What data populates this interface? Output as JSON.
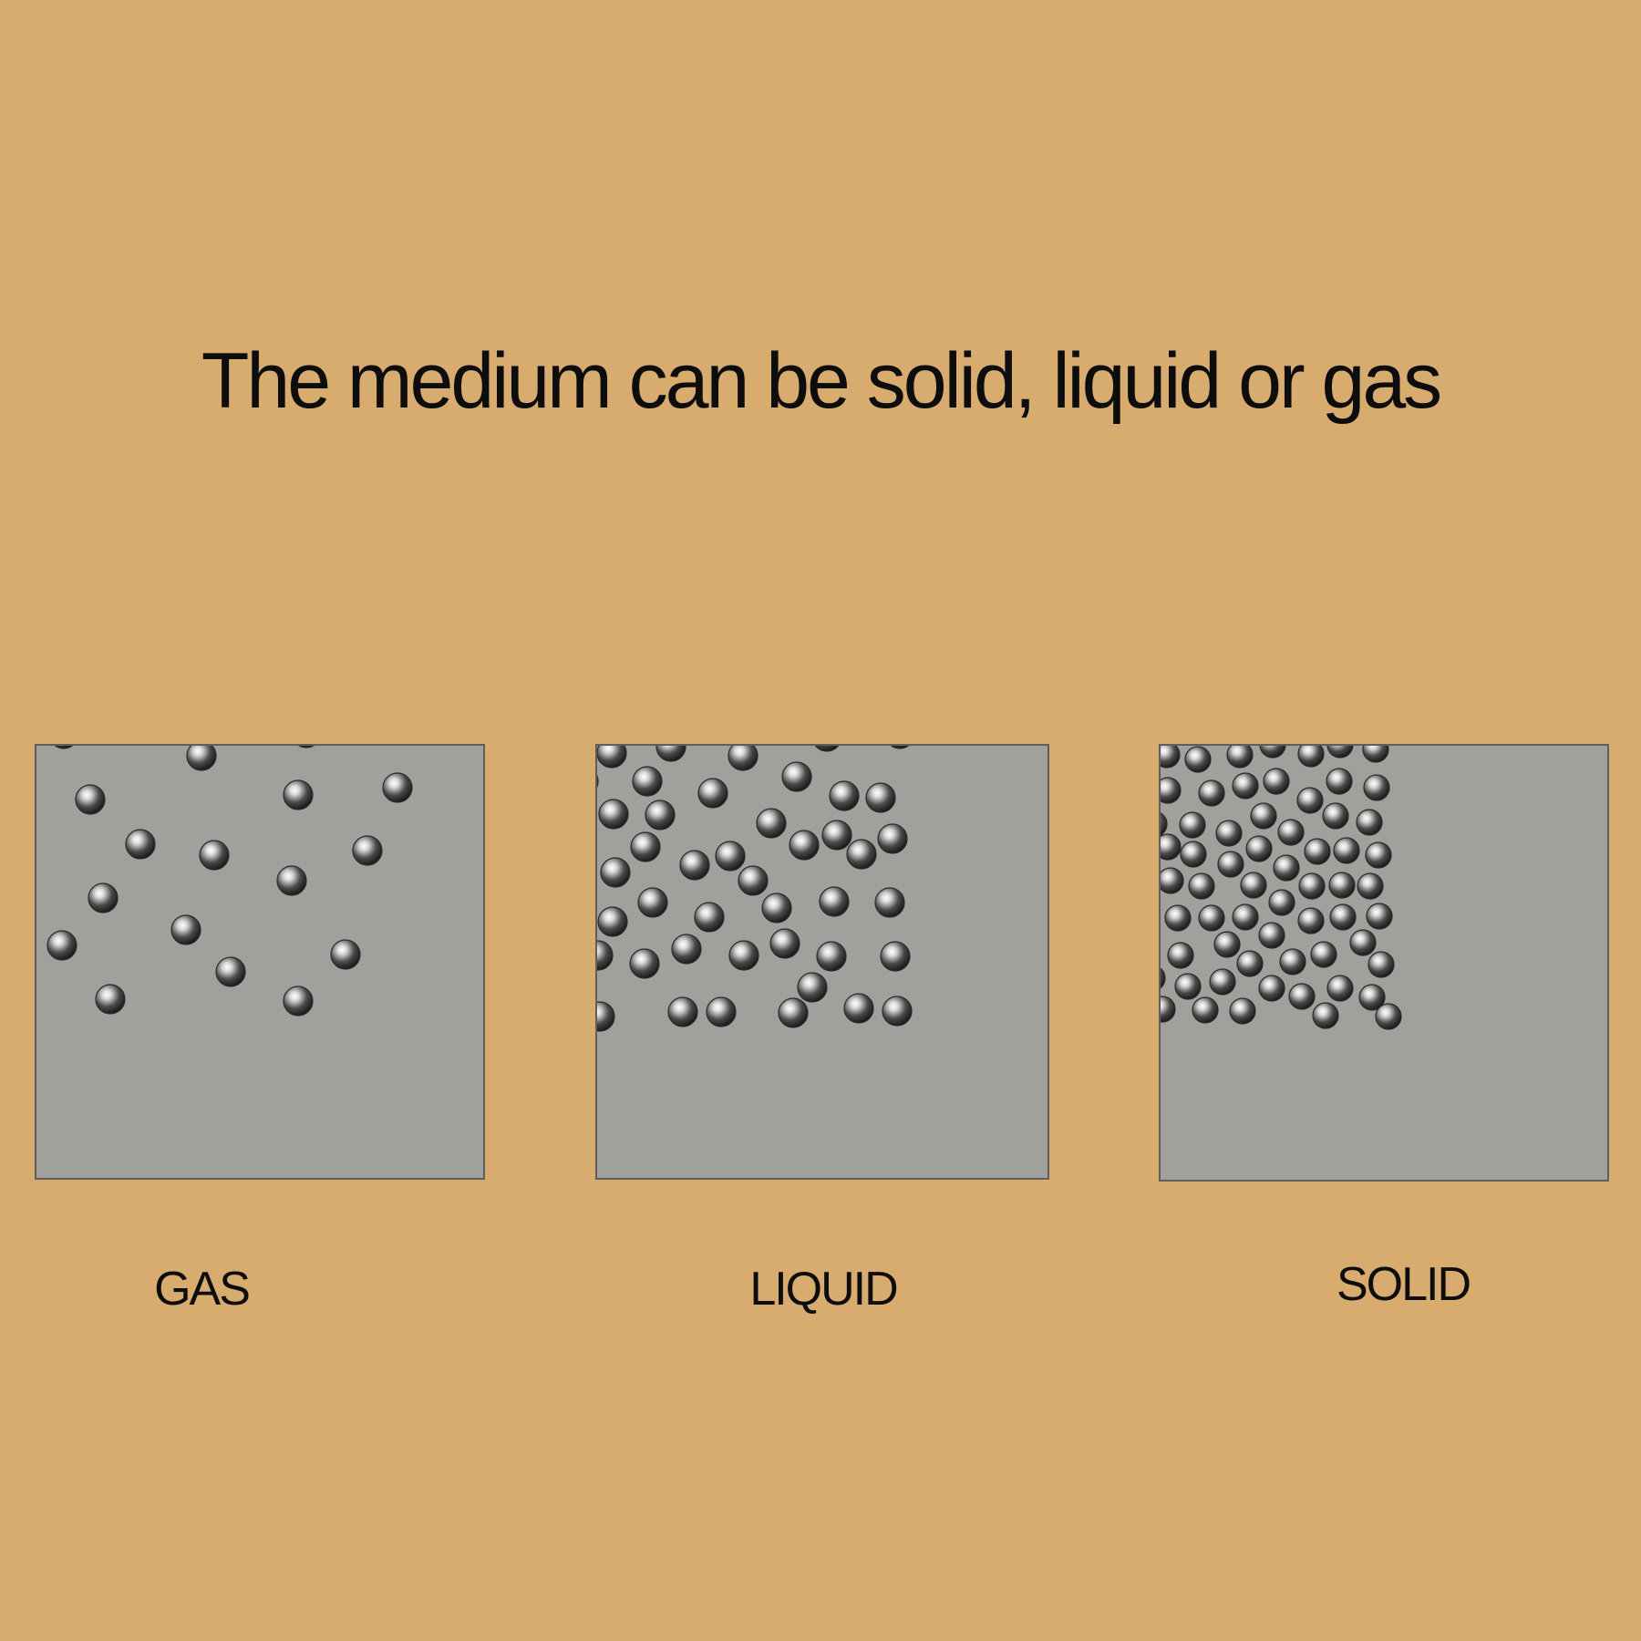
{
  "title": "The medium can be solid, liquid or gas",
  "colors": {
    "background": "#d8ab6f",
    "panel_fill": "#a0a19d",
    "panel_border": "#5e5e5b",
    "text": "#0d0d0d",
    "particle": "#3a3a3a"
  },
  "states": [
    {
      "key": "gas",
      "label": "GAS",
      "density": "sparse"
    },
    {
      "key": "liquid",
      "label": "LIQUID",
      "density": "medium"
    },
    {
      "key": "solid",
      "label": "SOLID",
      "density": "dense"
    }
  ]
}
